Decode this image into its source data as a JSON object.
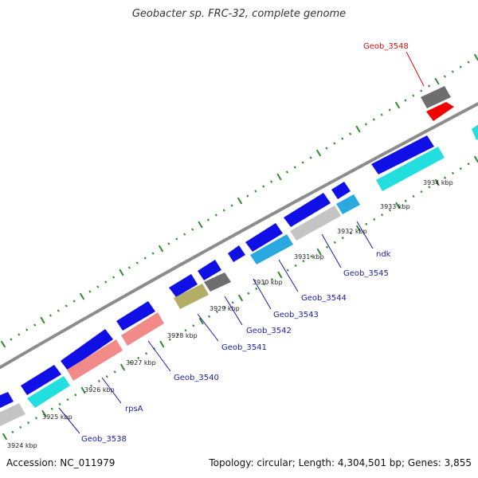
{
  "title": "Geobacter sp. FRC-32, complete genome",
  "footer": {
    "accession": "Accession: NC_011979",
    "summary": "Topology: circular; Length: 4,304,501 bp; Genes: 3,855"
  },
  "colors": {
    "backbone": "#8c8c8c",
    "tick": "#2e8b2e",
    "gene_blue": "#1010e6",
    "gene_cyan": "#22dede",
    "gene_light_blue": "#2aa8e0",
    "gene_gray": "#6e6e6e",
    "gene_light_gray": "#c4c4c4",
    "gene_pink": "#f28a8a",
    "gene_olive": "#b3ad66",
    "gene_red": "#f00000",
    "label_blue": "#1a1aa6",
    "label_red": "#d01010"
  },
  "scale_labels": [
    "3924 kbp",
    "3925 kbp",
    "3926 kbp",
    "3927 kbp",
    "3928 kbp",
    "3929 kbp",
    "3930 kbp",
    "3931 kbp",
    "3932 kbp",
    "3933 kbp",
    "3934 kbp"
  ],
  "gene_labels": [
    {
      "text": "Geob_3538",
      "color": "blue"
    },
    {
      "text": "rpsA",
      "color": "blue"
    },
    {
      "text": "Geob_3540",
      "color": "blue"
    },
    {
      "text": "Geob_3541",
      "color": "blue"
    },
    {
      "text": "Geob_3542",
      "color": "blue"
    },
    {
      "text": "Geob_3543",
      "color": "blue"
    },
    {
      "text": "Geob_3544",
      "color": "blue"
    },
    {
      "text": "Geob_3545",
      "color": "blue"
    },
    {
      "text": "ndk",
      "color": "blue"
    },
    {
      "text": "Geob_3548",
      "color": "red"
    }
  ]
}
